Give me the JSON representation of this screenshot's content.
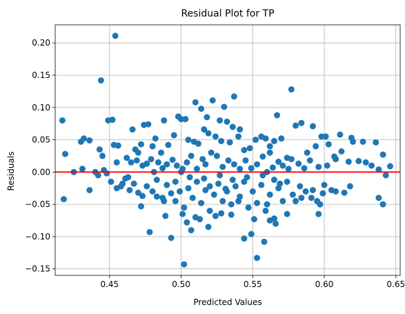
{
  "chart_data": {
    "type": "scatter",
    "title": "Residual Plot for TP",
    "xlabel": "Predicted Values",
    "ylabel": "Residuals",
    "xlim": [
      0.412,
      0.653
    ],
    "ylim": [
      -0.16,
      0.228
    ],
    "x_ticks": [
      0.45,
      0.5,
      0.55,
      0.6,
      0.65
    ],
    "x_tick_labels": [
      "0.45",
      "0.50",
      "0.55",
      "0.60",
      "0.65"
    ],
    "y_ticks": [
      -0.15,
      -0.1,
      -0.05,
      0.0,
      0.05,
      0.1,
      0.15,
      0.2
    ],
    "y_tick_labels": [
      "−0.15",
      "−0.10",
      "−0.05",
      "0.00",
      "0.05",
      "0.10",
      "0.15",
      "0.20"
    ],
    "grid": true,
    "point_color": "#1f77b4",
    "reference_line": {
      "y": 0.0,
      "color": "#ff0000"
    },
    "points": [
      [
        0.454,
        0.211
      ],
      [
        0.444,
        0.142
      ],
      [
        0.577,
        0.128
      ],
      [
        0.537,
        0.117
      ],
      [
        0.51,
        0.108
      ],
      [
        0.522,
        0.111
      ],
      [
        0.514,
        0.098
      ],
      [
        0.53,
        0.101
      ],
      [
        0.567,
        0.088
      ],
      [
        0.498,
        0.086
      ],
      [
        0.503,
        0.082
      ],
      [
        0.518,
        0.085
      ],
      [
        0.527,
        0.08
      ],
      [
        0.532,
        0.078
      ],
      [
        0.541,
        0.066
      ],
      [
        0.536,
        0.07
      ],
      [
        0.449,
        0.08
      ],
      [
        0.452,
        0.081
      ],
      [
        0.417,
        0.08
      ],
      [
        0.474,
        0.073
      ],
      [
        0.477,
        0.074
      ],
      [
        0.488,
        0.08
      ],
      [
        0.482,
        0.052
      ],
      [
        0.466,
        0.066
      ],
      [
        0.5,
        0.082
      ],
      [
        0.592,
        0.071
      ],
      [
        0.584,
        0.076
      ],
      [
        0.58,
        0.072
      ],
      [
        0.601,
        0.055
      ],
      [
        0.611,
        0.058
      ],
      [
        0.619,
        0.053
      ],
      [
        0.627,
        0.047
      ],
      [
        0.636,
        0.046
      ],
      [
        0.432,
        0.052
      ],
      [
        0.436,
        0.049
      ],
      [
        0.43,
        0.047
      ],
      [
        0.456,
        0.041
      ],
      [
        0.453,
        0.042
      ],
      [
        0.443,
        0.035
      ],
      [
        0.419,
        0.028
      ],
      [
        0.445,
        0.025
      ],
      [
        0.468,
        0.035
      ],
      [
        0.47,
        0.03
      ],
      [
        0.472,
        0.043
      ],
      [
        0.48,
        0.04
      ],
      [
        0.486,
        0.03
      ],
      [
        0.491,
        0.042
      ],
      [
        0.495,
        0.057
      ],
      [
        0.505,
        0.05
      ],
      [
        0.509,
        0.047
      ],
      [
        0.512,
        0.044
      ],
      [
        0.516,
        0.066
      ],
      [
        0.519,
        0.06
      ],
      [
        0.524,
        0.055
      ],
      [
        0.528,
        0.048
      ],
      [
        0.534,
        0.046
      ],
      [
        0.54,
        0.055
      ],
      [
        0.544,
        0.034
      ],
      [
        0.548,
        0.037
      ],
      [
        0.552,
        0.05
      ],
      [
        0.556,
        0.055
      ],
      [
        0.559,
        0.052
      ],
      [
        0.562,
        0.04
      ],
      [
        0.565,
        0.048
      ],
      [
        0.57,
        0.052
      ],
      [
        0.574,
        0.022
      ],
      [
        0.577,
        0.02
      ],
      [
        0.588,
        0.03
      ],
      [
        0.594,
        0.04
      ],
      [
        0.598,
        0.055
      ],
      [
        0.603,
        0.043
      ],
      [
        0.607,
        0.024
      ],
      [
        0.612,
        0.032
      ],
      [
        0.62,
        0.047
      ],
      [
        0.624,
        0.017
      ],
      [
        0.629,
        0.015
      ],
      [
        0.633,
        0.01
      ],
      [
        0.641,
        0.027
      ],
      [
        0.646,
        0.009
      ],
      [
        0.425,
        0.0
      ],
      [
        0.431,
        0.005
      ],
      [
        0.44,
        0.0
      ],
      [
        0.446,
        0.003
      ],
      [
        0.455,
        0.015
      ],
      [
        0.462,
        0.022
      ],
      [
        0.465,
        0.015
      ],
      [
        0.469,
        0.018
      ],
      [
        0.473,
        0.01
      ],
      [
        0.476,
        0.013
      ],
      [
        0.479,
        0.02
      ],
      [
        0.484,
        0.015
      ],
      [
        0.487,
        0.006
      ],
      [
        0.49,
        0.012
      ],
      [
        0.494,
        0.019
      ],
      [
        0.497,
        0.01
      ],
      [
        0.501,
        0.005
      ],
      [
        0.504,
        0.015
      ],
      [
        0.507,
        0.025
      ],
      [
        0.511,
        0.005
      ],
      [
        0.515,
        0.02
      ],
      [
        0.517,
        0.012
      ],
      [
        0.521,
        0.03
      ],
      [
        0.525,
        0.025
      ],
      [
        0.529,
        0.008
      ],
      [
        0.533,
        0.018
      ],
      [
        0.537,
        0.012
      ],
      [
        0.541,
        0.005
      ],
      [
        0.545,
        0.018
      ],
      [
        0.549,
        0.006
      ],
      [
        0.553,
        0.012
      ],
      [
        0.557,
        0.024
      ],
      [
        0.56,
        0.0
      ],
      [
        0.564,
        0.007
      ],
      [
        0.568,
        0.016
      ],
      [
        0.571,
        0.01
      ],
      [
        0.575,
        0.005
      ],
      [
        0.582,
        0.013
      ],
      [
        0.586,
        0.006
      ],
      [
        0.59,
        0.018
      ],
      [
        0.596,
        0.008
      ],
      [
        0.602,
        0.01
      ],
      [
        0.608,
        0.02
      ],
      [
        0.617,
        0.016
      ],
      [
        0.638,
        0.004
      ],
      [
        0.436,
        -0.028
      ],
      [
        0.442,
        -0.005
      ],
      [
        0.448,
        -0.002
      ],
      [
        0.451,
        -0.015
      ],
      [
        0.455,
        -0.025
      ],
      [
        0.458,
        -0.022
      ],
      [
        0.461,
        -0.01
      ],
      [
        0.464,
        -0.028
      ],
      [
        0.467,
        -0.018
      ],
      [
        0.47,
        -0.032
      ],
      [
        0.473,
        -0.037
      ],
      [
        0.476,
        -0.022
      ],
      [
        0.48,
        -0.03
      ],
      [
        0.483,
        -0.012
      ],
      [
        0.487,
        -0.04
      ],
      [
        0.49,
        -0.02
      ],
      [
        0.493,
        -0.033
      ],
      [
        0.496,
        -0.045
      ],
      [
        0.499,
        -0.03
      ],
      [
        0.502,
        -0.055
      ],
      [
        0.505,
        -0.025
      ],
      [
        0.508,
        -0.04
      ],
      [
        0.511,
        -0.015
      ],
      [
        0.514,
        -0.048
      ],
      [
        0.517,
        -0.028
      ],
      [
        0.52,
        -0.06
      ],
      [
        0.523,
        -0.035
      ],
      [
        0.526,
        -0.018
      ],
      [
        0.529,
        -0.045
      ],
      [
        0.532,
        -0.03
      ],
      [
        0.535,
        -0.05
      ],
      [
        0.538,
        -0.022
      ],
      [
        0.541,
        -0.038
      ],
      [
        0.544,
        -0.015
      ],
      [
        0.547,
        -0.055
      ],
      [
        0.55,
        -0.03
      ],
      [
        0.553,
        -0.048
      ],
      [
        0.556,
        -0.02
      ],
      [
        0.559,
        -0.06
      ],
      [
        0.562,
        -0.035
      ],
      [
        0.565,
        -0.072
      ],
      [
        0.568,
        -0.025
      ],
      [
        0.571,
        -0.045
      ],
      [
        0.574,
        -0.015
      ],
      [
        0.578,
        -0.035
      ],
      [
        0.583,
        -0.022
      ],
      [
        0.587,
        -0.03
      ],
      [
        0.591,
        -0.04
      ],
      [
        0.595,
        -0.045
      ],
      [
        0.599,
        -0.033
      ],
      [
        0.605,
        -0.028
      ],
      [
        0.614,
        -0.032
      ],
      [
        0.618,
        -0.022
      ],
      [
        0.638,
        -0.04
      ],
      [
        0.641,
        -0.05
      ],
      [
        0.643,
        -0.005
      ],
      [
        0.418,
        -0.042
      ],
      [
        0.472,
        -0.053
      ],
      [
        0.478,
        -0.093
      ],
      [
        0.489,
        -0.068
      ],
      [
        0.493,
        -0.102
      ],
      [
        0.501,
        -0.065
      ],
      [
        0.504,
        -0.078
      ],
      [
        0.507,
        -0.09
      ],
      [
        0.51,
        -0.07
      ],
      [
        0.513,
        -0.073
      ],
      [
        0.519,
        -0.085
      ],
      [
        0.524,
        -0.068
      ],
      [
        0.528,
        -0.064
      ],
      [
        0.535,
        -0.066
      ],
      [
        0.544,
        -0.103
      ],
      [
        0.549,
        -0.096
      ],
      [
        0.551,
        -0.073
      ],
      [
        0.553,
        -0.133
      ],
      [
        0.558,
        -0.108
      ],
      [
        0.562,
        -0.075
      ],
      [
        0.566,
        -0.08
      ],
      [
        0.574,
        -0.065
      ],
      [
        0.596,
        -0.065
      ],
      [
        0.502,
        -0.143
      ],
      [
        0.488,
        -0.045
      ],
      [
        0.483,
        -0.038
      ],
      [
        0.496,
        -0.015
      ],
      [
        0.506,
        -0.008
      ],
      [
        0.516,
        -0.01
      ],
      [
        0.527,
        -0.005
      ],
      [
        0.536,
        -0.012
      ],
      [
        0.546,
        -0.008
      ],
      [
        0.557,
        -0.005
      ],
      [
        0.565,
        -0.012
      ],
      [
        0.584,
        -0.04
      ],
      [
        0.592,
        -0.028
      ],
      [
        0.597,
        -0.05
      ],
      [
        0.459,
        -0.018
      ],
      [
        0.463,
        -0.008
      ],
      [
        0.481,
        0.0
      ],
      [
        0.5,
        0.0
      ],
      [
        0.52,
        -0.022
      ],
      [
        0.531,
        -0.026
      ],
      [
        0.54,
        -0.045
      ],
      [
        0.56,
        -0.05
      ],
      [
        0.569,
        -0.018
      ],
      [
        0.58,
        -0.045
      ],
      [
        0.6,
        -0.02
      ],
      [
        0.608,
        -0.03
      ],
      [
        0.562,
        0.03
      ]
    ]
  }
}
